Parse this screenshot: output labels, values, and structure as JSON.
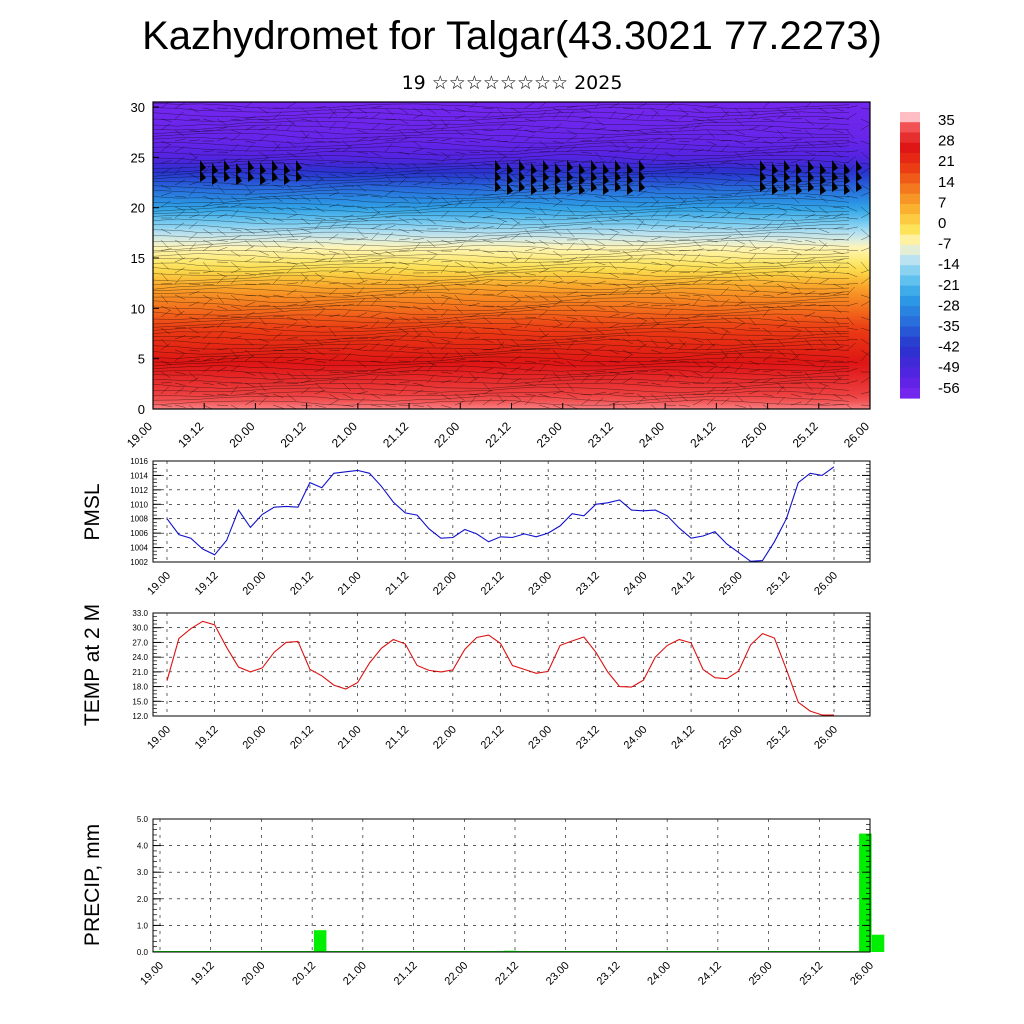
{
  "title": "Kazhydromet for Talgar(43.3021 77.2273)",
  "subtitle": "19 ☆☆☆☆☆☆☆☆ 2025",
  "time_labels": [
    "19.00",
    "19.12",
    "20.00",
    "20.12",
    "21.00",
    "21.12",
    "22.00",
    "22.12",
    "23.00",
    "23.12",
    "24.00",
    "24.12",
    "25.00",
    "25.12",
    "26.00"
  ],
  "colors": {
    "pmsl_line": "#1111cc",
    "temp_line": "#dd1111",
    "precip_bar": "#00ee00",
    "grid": "#000000"
  },
  "chart_data": [
    {
      "type": "heatmap",
      "name": "cross-section",
      "title": "",
      "xlabel": "",
      "ylabel": "",
      "x_ticks": [
        "19.00",
        "19.12",
        "20.00",
        "20.12",
        "21.00",
        "21.12",
        "22.00",
        "22.12",
        "23.00",
        "23.12",
        "24.00",
        "24.12",
        "25.00",
        "25.12",
        "26.00"
      ],
      "y_ticks": [
        0,
        5,
        10,
        15,
        20,
        25,
        30
      ],
      "ylim": [
        0,
        30.5
      ],
      "colorbar_labels": [
        "35",
        "28",
        "21",
        "14",
        "7",
        "0",
        "-7",
        "-14",
        "-21",
        "-28",
        "-35",
        "-42",
        "-49",
        "-56"
      ],
      "colorbar_colors": [
        "#ff3333",
        "#e81c1c",
        "#f04a1a",
        "#f57c20",
        "#f9a82a",
        "#fcd040",
        "#fde886",
        "#cde8ee",
        "#6cc6ee",
        "#2fa0e6",
        "#2c6ad8",
        "#2f3ed0",
        "#4a26e0",
        "#7a22f0"
      ],
      "annotation": "wind barbs overlay",
      "profile": {
        "heights": [
          0,
          4,
          8,
          12,
          14,
          16,
          18,
          20,
          22,
          23.5,
          25,
          27,
          30.5
        ],
        "temps": [
          33,
          25,
          17,
          5,
          -4,
          -9,
          -18,
          -28,
          -38,
          -46,
          -56,
          -60,
          -62
        ]
      }
    },
    {
      "type": "line",
      "name": "pmsl",
      "title": "",
      "xlabel": "",
      "ylabel": "PMSL",
      "ylim": [
        1002,
        1016
      ],
      "y_ticks": [
        1002,
        1004,
        1006,
        1008,
        1010,
        1012,
        1014,
        1016
      ],
      "x_ticks": [
        "19.00",
        "19.12",
        "20.00",
        "20.12",
        "21.00",
        "21.12",
        "22.00",
        "22.12",
        "23.00",
        "23.12",
        "24.00",
        "24.12",
        "25.00",
        "25.12",
        "26.00"
      ],
      "x_hours": [
        0,
        3,
        6,
        9,
        12,
        15,
        18,
        21,
        24,
        27,
        30,
        33,
        36,
        39,
        42,
        45,
        48,
        51,
        54,
        57,
        60,
        63,
        66,
        69,
        72,
        75,
        78,
        81,
        84,
        87,
        90,
        93,
        96,
        99,
        102,
        105,
        108,
        111,
        114,
        117,
        120,
        123,
        126,
        129,
        132,
        135,
        138,
        141,
        144,
        147,
        150,
        153,
        156,
        159,
        162,
        165,
        168
      ],
      "series": [
        {
          "name": "",
          "values": [
            1008.0,
            1005.8,
            1005.3,
            1003.8,
            1003.0,
            1005.0,
            1009.2,
            1006.8,
            1008.6,
            1009.6,
            1009.7,
            1009.6,
            1013.0,
            1012.3,
            1014.3,
            1014.5,
            1014.7,
            1014.3,
            1012.5,
            1010.3,
            1008.8,
            1008.5,
            1006.6,
            1005.3,
            1005.4,
            1006.5,
            1005.9,
            1004.8,
            1005.5,
            1005.4,
            1005.9,
            1005.5,
            1006.0,
            1007.0,
            1008.7,
            1008.4,
            1010.0,
            1010.2,
            1010.6,
            1009.2,
            1009.1,
            1009.2,
            1008.4,
            1006.7,
            1005.3,
            1005.6,
            1006.2,
            1004.5,
            1003.3,
            1002.1,
            1002.2,
            1004.8,
            1008.0,
            1013.0,
            1014.3,
            1014.0,
            1015.2
          ]
        }
      ]
    },
    {
      "type": "line",
      "name": "temp-2m",
      "title": "",
      "xlabel": "",
      "ylabel": "TEMP at 2 M",
      "ylim": [
        12,
        33
      ],
      "y_ticks": [
        "12.0",
        "15.0",
        "18.0",
        "21.0",
        "24.0",
        "27.0",
        "30.0",
        "33.0"
      ],
      "x_ticks": [
        "19.00",
        "19.12",
        "20.00",
        "20.12",
        "21.00",
        "21.12",
        "22.00",
        "22.12",
        "23.00",
        "23.12",
        "24.00",
        "24.12",
        "25.00",
        "25.12",
        "26.00"
      ],
      "x_hours": [
        0,
        3,
        6,
        9,
        12,
        15,
        18,
        21,
        24,
        27,
        30,
        33,
        36,
        39,
        42,
        45,
        48,
        51,
        54,
        57,
        60,
        63,
        66,
        69,
        72,
        75,
        78,
        81,
        84,
        87,
        90,
        93,
        96,
        99,
        102,
        105,
        108,
        111,
        114,
        117,
        120,
        123,
        126,
        129,
        132,
        135,
        138,
        141,
        144,
        147,
        150,
        153,
        156,
        159,
        162,
        165,
        168
      ],
      "series": [
        {
          "name": "",
          "values": [
            19.2,
            27.8,
            29.8,
            31.3,
            30.6,
            26.0,
            22.0,
            21.0,
            21.8,
            25.0,
            27.0,
            27.2,
            21.5,
            20.2,
            18.3,
            17.5,
            18.8,
            22.8,
            25.8,
            27.6,
            26.7,
            22.3,
            21.3,
            21.0,
            21.4,
            25.6,
            28.0,
            28.5,
            26.8,
            22.3,
            21.5,
            20.7,
            21.1,
            26.4,
            27.3,
            28.1,
            25.0,
            21.0,
            18.0,
            17.9,
            19.3,
            24.0,
            26.4,
            27.6,
            26.9,
            21.5,
            19.8,
            19.6,
            21.2,
            26.5,
            28.8,
            27.9,
            21.5,
            14.8,
            13.0,
            12.2,
            12.2
          ]
        }
      ]
    },
    {
      "type": "bar",
      "name": "precip",
      "title": "",
      "xlabel": "",
      "ylabel": "PRECIP, mm",
      "ylim": [
        0,
        5
      ],
      "y_ticks": [
        "0.0",
        "1.0",
        "2.0",
        "3.0",
        "4.0",
        "5.0"
      ],
      "x_ticks": [
        "19.00",
        "19.12",
        "20.00",
        "20.12",
        "21.00",
        "21.12",
        "22.00",
        "22.12",
        "23.00",
        "23.12",
        "24.00",
        "24.12",
        "25.00",
        "25.12",
        "26.00"
      ],
      "bars": [
        {
          "time_hours": 36,
          "value": 0.82
        },
        {
          "time_hours": 81,
          "value": 0.05
        },
        {
          "time_hours": 165,
          "value": 4.45
        },
        {
          "time_hours": 168,
          "value": 0.65
        }
      ]
    }
  ]
}
